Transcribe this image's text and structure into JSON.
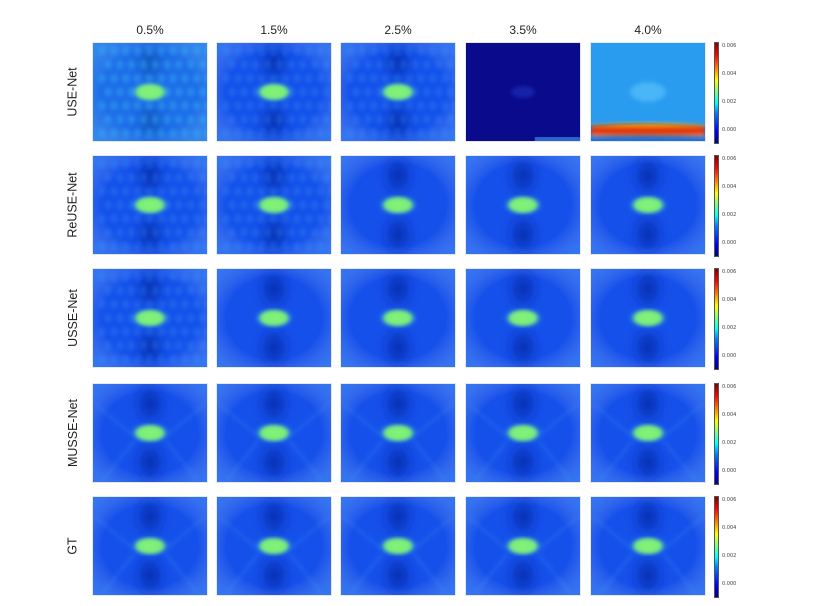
{
  "columns": [
    "0.5%",
    "1.5%",
    "2.5%",
    "3.5%",
    "4.0%"
  ],
  "rows": [
    "USE-Net",
    "ReUSE-Net",
    "USSE-Net",
    "MUSSE-Net",
    "GT"
  ],
  "colorbar_ticks": [
    "0.006",
    "0.004",
    "0.002",
    "0.000"
  ],
  "colors": {
    "background_blue": "#1550ea",
    "inclusion_green": "#7af07a",
    "inclusion_core": "#d8ff4a",
    "shadow_blue": "#0a1f9a",
    "dark_navy": "#0a0a8c",
    "light_blue": "#2a9cf0",
    "red_band": "#d01010",
    "yellow_band": "#ffe000"
  }
}
